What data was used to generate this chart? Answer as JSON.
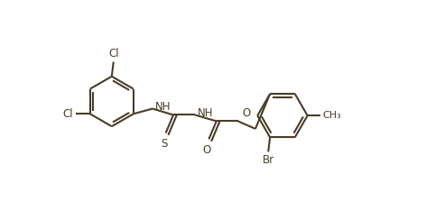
{
  "bg_color": "#ffffff",
  "line_color": "#4a3c28",
  "text_color": "#4a3c28",
  "line_width": 1.5,
  "font_size": 8.5,
  "figsize": [
    4.82,
    2.44
  ],
  "dpi": 100,
  "xlim": [
    0,
    9.64
  ],
  "ylim": [
    0,
    4.88
  ]
}
